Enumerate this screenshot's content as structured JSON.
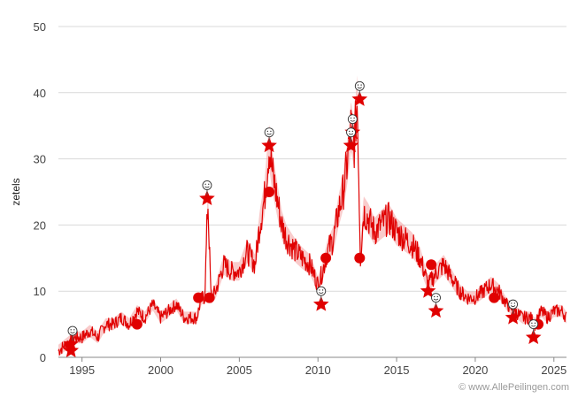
{
  "chart_data": {
    "type": "line",
    "ylabel": "zetels",
    "xlabel": "",
    "title": "",
    "xlim": [
      1993.5,
      2025.8
    ],
    "ylim": [
      0,
      50
    ],
    "yticks": [
      0,
      10,
      20,
      30,
      40,
      50
    ],
    "xticks": [
      1995,
      2000,
      2005,
      2010,
      2015,
      2020,
      2025
    ],
    "grid": "horizontal",
    "line_color": "#e00000",
    "band_color": "#f4a0a0",
    "series": [
      {
        "values_x": [
          1993.5,
          1994.0,
          1994.5,
          1995.0,
          1995.5,
          1996.0,
          1996.5,
          1997.0,
          1997.5,
          1998.0,
          1998.5,
          1999.0,
          1999.5,
          2000.0,
          2000.5,
          2001.0,
          2001.5,
          2002.0,
          2002.3,
          2002.6,
          2002.8,
          2003.0,
          2003.2,
          2003.5,
          2004.0,
          2004.5,
          2005.0,
          2005.5,
          2006.0,
          2006.3,
          2006.6,
          2006.9,
          2007.1,
          2007.4,
          2007.7,
          2008.0,
          2008.3,
          2008.6,
          2009.0,
          2009.5,
          2010.0,
          2010.3,
          2010.6,
          2011.0,
          2011.3,
          2011.6,
          2011.9,
          2012.1,
          2012.3,
          2012.5,
          2012.7,
          2012.9,
          2013.2,
          2013.6,
          2014.0,
          2014.5,
          2015.0,
          2015.5,
          2016.0,
          2016.5,
          2017.0,
          2017.3,
          2017.6,
          2018.0,
          2018.5,
          2019.0,
          2019.5,
          2020.0,
          2020.5,
          2021.0,
          2021.5,
          2022.0,
          2022.5,
          2023.0,
          2023.5,
          2023.8,
          2024.2,
          2024.6,
          2025.0,
          2025.5,
          2025.8
        ],
        "values_y": [
          1,
          2,
          3,
          3,
          4,
          3,
          5,
          5,
          6,
          5,
          7,
          6,
          8,
          6,
          7,
          8,
          6,
          6,
          6,
          9,
          9,
          24,
          9,
          10,
          14,
          13,
          13,
          16,
          14,
          20,
          24,
          32,
          28,
          24,
          20,
          18,
          17,
          16,
          15,
          14,
          11,
          13,
          16,
          18,
          22,
          25,
          30,
          35,
          32,
          39,
          15,
          22,
          21,
          19,
          20,
          21,
          19,
          18,
          17,
          15,
          11,
          12,
          13,
          14,
          12,
          10,
          9,
          9,
          10,
          11,
          10,
          8,
          7,
          6,
          6,
          5,
          7,
          6,
          7,
          7,
          6
        ],
        "name": ""
      }
    ],
    "events": [
      {
        "x": 1994.3,
        "y": 2,
        "kind": "star"
      },
      {
        "x": 1994.3,
        "y": 1,
        "kind": "star"
      },
      {
        "x": 1998.5,
        "y": 5,
        "kind": "dot"
      },
      {
        "x": 2002.4,
        "y": 9,
        "kind": "dot"
      },
      {
        "x": 2003.1,
        "y": 9,
        "kind": "dot"
      },
      {
        "x": 2002.95,
        "y": 24,
        "kind": "star"
      },
      {
        "x": 2006.9,
        "y": 25,
        "kind": "dot"
      },
      {
        "x": 2006.9,
        "y": 32,
        "kind": "star"
      },
      {
        "x": 2010.2,
        "y": 8,
        "kind": "star"
      },
      {
        "x": 2010.5,
        "y": 15,
        "kind": "dot"
      },
      {
        "x": 2012.1,
        "y": 32,
        "kind": "star"
      },
      {
        "x": 2012.2,
        "y": 34,
        "kind": "star"
      },
      {
        "x": 2012.65,
        "y": 39,
        "kind": "star"
      },
      {
        "x": 2012.65,
        "y": 15,
        "kind": "dot"
      },
      {
        "x": 2017.0,
        "y": 10,
        "kind": "star"
      },
      {
        "x": 2017.2,
        "y": 14,
        "kind": "dot"
      },
      {
        "x": 2017.5,
        "y": 7,
        "kind": "star"
      },
      {
        "x": 2021.2,
        "y": 9,
        "kind": "dot"
      },
      {
        "x": 2022.4,
        "y": 6,
        "kind": "star"
      },
      {
        "x": 2023.7,
        "y": 3,
        "kind": "star"
      },
      {
        "x": 2024.0,
        "y": 5,
        "kind": "dot"
      }
    ],
    "faces": [
      {
        "x": 1994.4,
        "y": 2
      },
      {
        "x": 2002.95,
        "y": 24
      },
      {
        "x": 2006.9,
        "y": 32
      },
      {
        "x": 2010.2,
        "y": 8
      },
      {
        "x": 2012.1,
        "y": 32
      },
      {
        "x": 2012.2,
        "y": 34
      },
      {
        "x": 2012.65,
        "y": 39
      },
      {
        "x": 2017.5,
        "y": 7
      },
      {
        "x": 2022.4,
        "y": 6
      },
      {
        "x": 2023.7,
        "y": 3
      }
    ]
  },
  "watermark": "© www.AllePeilingen.com"
}
